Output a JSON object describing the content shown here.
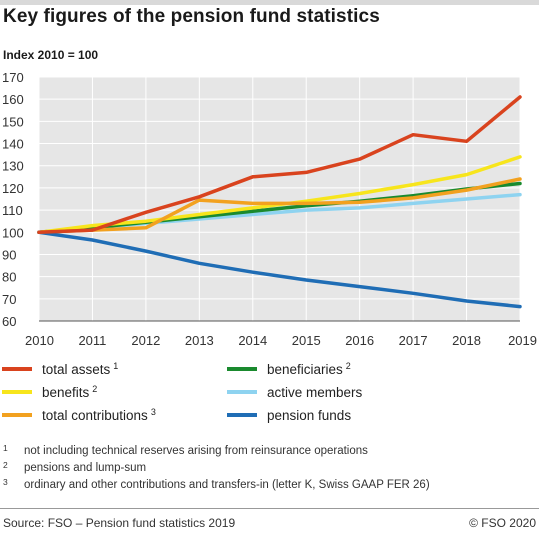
{
  "header": {
    "title": "Key figures of the pension fund statistics",
    "subtitle": "Index 2010 = 100"
  },
  "chart_data": {
    "type": "line",
    "title": "Key figures of the pension fund statistics",
    "ylabel": "Index 2010 = 100",
    "xlabel": "",
    "x": [
      2010,
      2011,
      2012,
      2013,
      2014,
      2015,
      2016,
      2017,
      2018,
      2019
    ],
    "ylim": [
      60,
      170
    ],
    "yticks": [
      60,
      70,
      80,
      90,
      100,
      110,
      120,
      130,
      140,
      150,
      160,
      170
    ],
    "grid": true,
    "legend_position": "bottom",
    "series": [
      {
        "name": "active members",
        "color": "#8ed3f0",
        "values": [
          100,
          102,
          104,
          106,
          108,
          110,
          111,
          113,
          115,
          117
        ]
      },
      {
        "name": "beneficiaries",
        "color": "#1a8a2e",
        "values": [
          100,
          102,
          104.5,
          107,
          109.5,
          112,
          114,
          116.5,
          119.5,
          122
        ]
      },
      {
        "name": "benefits",
        "color": "#f7e51c",
        "values": [
          100,
          103,
          105,
          108,
          111,
          114,
          117.5,
          121.5,
          126,
          134
        ]
      },
      {
        "name": "total contributions",
        "color": "#f2a11f",
        "values": [
          100,
          101,
          102,
          114.5,
          113,
          113,
          113.5,
          115.5,
          119,
          124
        ]
      },
      {
        "name": "pension funds",
        "color": "#1f6db5",
        "values": [
          100,
          96.5,
          91.5,
          86,
          82,
          78.5,
          75.5,
          72.5,
          69,
          66.5
        ]
      },
      {
        "name": "total assets",
        "color": "#d9431e",
        "values": [
          100,
          101,
          109,
          116,
          125,
          127,
          133,
          144,
          141,
          161
        ]
      }
    ]
  },
  "legend": [
    {
      "label": "total assets",
      "sup": "1",
      "color": "#d9431e"
    },
    {
      "label": "benefits",
      "sup": "2",
      "color": "#f7e51c"
    },
    {
      "label": "total contributions",
      "sup": "3",
      "color": "#f2a11f"
    },
    {
      "label": "beneficiaries",
      "sup": "2",
      "color": "#1a8a2e"
    },
    {
      "label": "active members",
      "sup": "",
      "color": "#8ed3f0"
    },
    {
      "label": "pension funds",
      "sup": "",
      "color": "#1f6db5"
    }
  ],
  "footnotes": [
    {
      "mark": "1",
      "text": "not including technical reserves arising from reinsurance operations"
    },
    {
      "mark": "2",
      "text": "pensions and lump-sum"
    },
    {
      "mark": "3",
      "text": "ordinary and other contributions and transfers-in (letter K, Swiss GAAP FER 26)"
    }
  ],
  "footer": {
    "source": "Source: FSO – Pension fund statistics 2019",
    "copyright": "© FSO 2020"
  }
}
